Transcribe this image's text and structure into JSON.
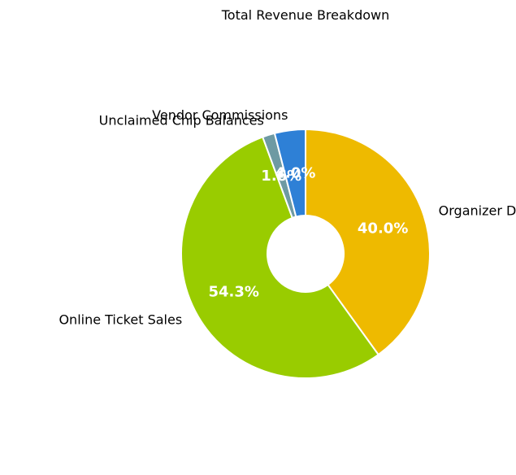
{
  "chart_data": {
    "type": "pie",
    "variant": "donut",
    "title": "Total Revenue Breakdown",
    "start_angle_deg": 90,
    "direction": "clockwise",
    "slices": [
      {
        "label": "Organizer Direct Sales",
        "value": 40.0,
        "pct_label": "40.0%",
        "color": "#EEBA00"
      },
      {
        "label": "Online Ticket Sales",
        "value": 54.3,
        "pct_label": "54.3%",
        "color": "#99CC00"
      },
      {
        "label": "Unclaimed Chip Balances",
        "value": 1.6,
        "pct_label": "1.6%",
        "color": "#6E9AA3"
      },
      {
        "label": "Vendor Commissions",
        "value": 4.0,
        "pct_label": "4.0%",
        "color": "#2E80D6"
      }
    ],
    "edge_color": "#FFFFFF",
    "percent_text_color": "#FFFFFF",
    "legend": "none"
  }
}
